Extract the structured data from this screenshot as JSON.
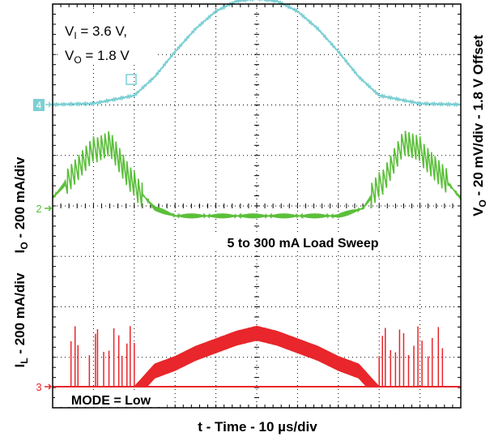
{
  "chart_data": {
    "type": "line",
    "x_unit_per_div": "10 µs/div",
    "divisions": {
      "x": 10,
      "y": 8
    },
    "grid": true,
    "xlabel": "t - Time - 10 µs/div",
    "ylabel_right": "V_O - 20 mV/div - 1.8 V Offset",
    "ylabel_left_top": "I_O - 200 mA/div",
    "ylabel_left_bottom": "I_L - 200 mA/div",
    "conditions": [
      "V_I = 3.6 V,",
      "V_O = 1.8 V"
    ],
    "annotations": [
      "5 to 300 mA Load Sweep",
      "MODE = Low"
    ],
    "channel_markers": [
      "4",
      "2",
      "3"
    ],
    "series": [
      {
        "channel": "4",
        "color": "#7ccfd3",
        "t_div": [
          0,
          1,
          2,
          2.5,
          3,
          3.5,
          4,
          4.5,
          5,
          5.5,
          6,
          6.5,
          7,
          7.5,
          8,
          9,
          10
        ],
        "v_div": [
          0,
          0.02,
          0.18,
          0.55,
          1.05,
          1.5,
          1.85,
          2.05,
          2.1,
          2.05,
          1.85,
          1.5,
          1.05,
          0.55,
          0.18,
          0.02,
          0
        ]
      },
      {
        "channel": "2",
        "color": "#5bbf3a",
        "t_div": [
          0,
          1,
          1.4,
          1.9,
          2.5,
          3,
          4,
          5,
          6,
          7,
          7.6,
          8.1,
          8.6,
          9,
          10
        ],
        "v_div": [
          0.2,
          1.15,
          1.3,
          0.55,
          0,
          -0.15,
          -0.15,
          -0.15,
          -0.15,
          -0.15,
          0,
          0.55,
          1.3,
          1.15,
          0.2
        ]
      },
      {
        "channel": "3",
        "color": "#e8262b",
        "t_div": [
          0,
          1,
          2,
          2.5,
          3,
          3.5,
          4,
          4.5,
          5,
          5.5,
          6,
          6.5,
          7,
          7.5,
          8,
          9,
          10
        ],
        "v_div": [
          0,
          0,
          0,
          0.45,
          0.6,
          0.8,
          0.95,
          1.1,
          1.2,
          1.1,
          0.95,
          0.8,
          0.6,
          0.45,
          0,
          0,
          0
        ]
      }
    ]
  },
  "colors": {
    "ch4": "#7ccfd3",
    "ch2": "#5bbf3a",
    "ch3": "#e8262b"
  }
}
